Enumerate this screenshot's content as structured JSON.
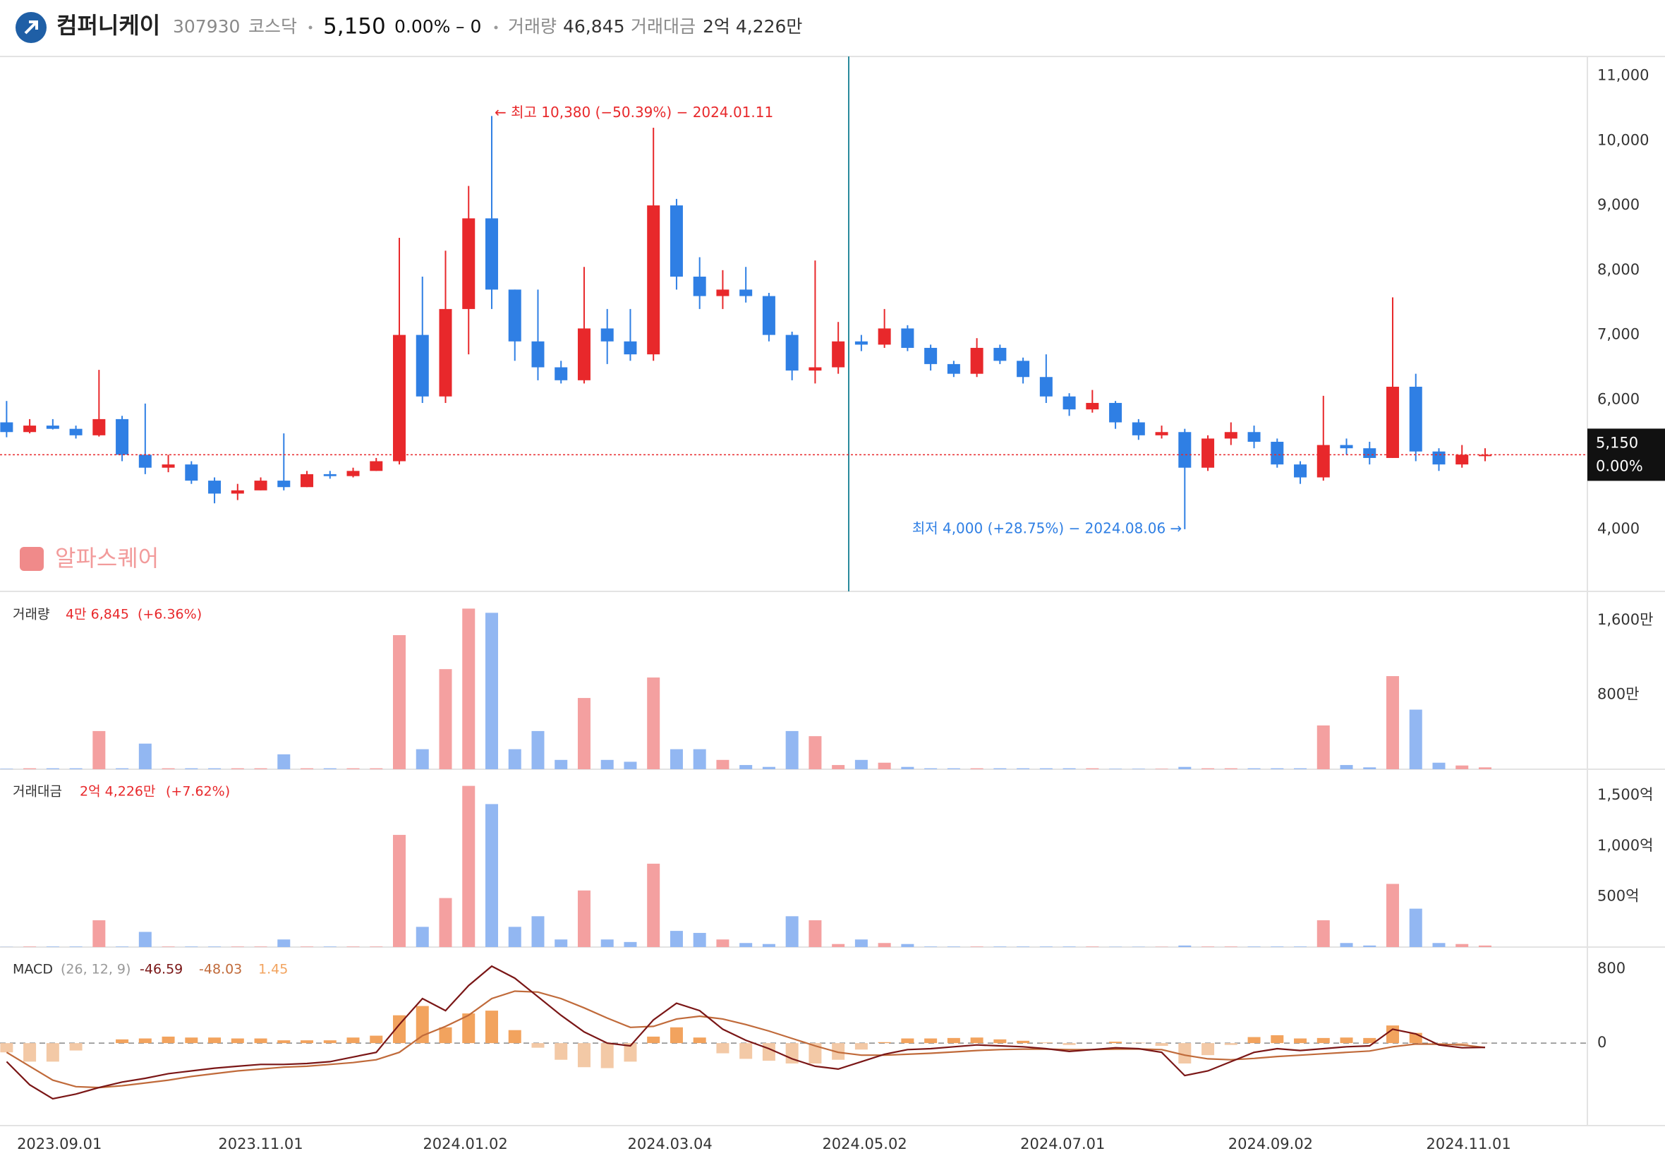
{
  "header": {
    "name": "컴퍼니케이",
    "code": "307930",
    "market": "코스닥",
    "price": "5,150",
    "change_pct": "0.00%",
    "change": "– 0",
    "volume_label": "거래량",
    "volume": "46,845",
    "amount_label": "거래대금",
    "amount": "2억 4,226만"
  },
  "watermark": "알파스퀘어",
  "chart_data": [
    {
      "type": "candlestick",
      "up_color": "#e8282b",
      "down_color": "#2f7fe4",
      "x": [
        "2023.08.14",
        "2023.08.21",
        "2023.08.28",
        "2023.09.04",
        "2023.09.11",
        "2023.09.18",
        "2023.09.25",
        "2023.10.02",
        "2023.10.09",
        "2023.10.16",
        "2023.10.23",
        "2023.10.30",
        "2023.11.06",
        "2023.11.13",
        "2023.11.20",
        "2023.11.27",
        "2023.12.04",
        "2023.12.11",
        "2023.12.18",
        "2023.12.25",
        "2024.01.01",
        "2024.01.08",
        "2024.01.15",
        "2024.01.22",
        "2024.01.29",
        "2024.02.05",
        "2024.02.12",
        "2024.02.19",
        "2024.02.26",
        "2024.03.04",
        "2024.03.11",
        "2024.03.18",
        "2024.03.25",
        "2024.04.01",
        "2024.04.08",
        "2024.04.15",
        "2024.04.22",
        "2024.04.29",
        "2024.05.06",
        "2024.05.13",
        "2024.05.20",
        "2024.05.27",
        "2024.06.03",
        "2024.06.10",
        "2024.06.17",
        "2024.06.24",
        "2024.07.01",
        "2024.07.08",
        "2024.07.15",
        "2024.07.22",
        "2024.07.29",
        "2024.08.05",
        "2024.08.12",
        "2024.08.19",
        "2024.08.26",
        "2024.09.02",
        "2024.09.09",
        "2024.09.16",
        "2024.09.23",
        "2024.09.30",
        "2024.10.07",
        "2024.10.14",
        "2024.10.21",
        "2024.10.28",
        "2024.11.04"
      ],
      "open": [
        5650,
        5500,
        5600,
        5550,
        5450,
        5700,
        5150,
        4950,
        5000,
        4750,
        4550,
        4600,
        4750,
        4650,
        4850,
        4820,
        4900,
        5050,
        7000,
        6050,
        7400,
        8800,
        7700,
        6900,
        6500,
        6300,
        7100,
        6900,
        6700,
        9000,
        7900,
        7600,
        7700,
        7600,
        7000,
        6450,
        6500,
        6900,
        6850,
        7100,
        6800,
        6550,
        6400,
        6800,
        6600,
        6350,
        6050,
        5850,
        5950,
        5650,
        5450,
        5500,
        4950,
        5400,
        5500,
        5350,
        5000,
        4800,
        5300,
        5250,
        5100,
        6200,
        5200,
        5000,
        5150
      ],
      "high": [
        5980,
        5700,
        5700,
        5600,
        6460,
        5750,
        5940,
        5150,
        5050,
        4800,
        4700,
        4800,
        5480,
        4900,
        4900,
        4950,
        5100,
        8500,
        7900,
        8300,
        9300,
        10380,
        7700,
        7700,
        6600,
        8050,
        7400,
        7400,
        10200,
        9100,
        8200,
        8000,
        8050,
        7650,
        7050,
        8150,
        7200,
        7000,
        7400,
        7150,
        6850,
        6600,
        6950,
        6850,
        6650,
        6700,
        6100,
        6150,
        5980,
        5700,
        5600,
        5550,
        5450,
        5650,
        5600,
        5400,
        5050,
        6060,
        5400,
        5350,
        7580,
        6400,
        5250,
        5300,
        5250
      ],
      "low": [
        5420,
        5480,
        5540,
        5400,
        5430,
        5050,
        4850,
        4880,
        4700,
        4400,
        4450,
        4600,
        4600,
        4650,
        4780,
        4800,
        4900,
        5000,
        5950,
        5950,
        6700,
        7400,
        6600,
        6300,
        6250,
        6250,
        6550,
        6600,
        6600,
        7700,
        7400,
        7400,
        7500,
        6900,
        6300,
        6250,
        6400,
        6750,
        6800,
        6750,
        6450,
        6350,
        6350,
        6550,
        6250,
        5950,
        5750,
        5800,
        5550,
        5380,
        5400,
        4000,
        4900,
        5300,
        5250,
        4950,
        4700,
        4750,
        5150,
        5000,
        5100,
        5050,
        4900,
        4950,
        5050
      ],
      "close": [
        5500,
        5600,
        5550,
        5450,
        5700,
        5150,
        4950,
        5000,
        4750,
        4550,
        4600,
        4750,
        4650,
        4850,
        4820,
        4900,
        5050,
        7000,
        6050,
        7400,
        8800,
        7700,
        6900,
        6500,
        6300,
        7100,
        6900,
        6700,
        9000,
        7900,
        7600,
        7700,
        7600,
        7000,
        6450,
        6500,
        6900,
        6850,
        7100,
        6800,
        6550,
        6400,
        6800,
        6600,
        6350,
        6050,
        5850,
        5950,
        5650,
        5450,
        5500,
        4950,
        5400,
        5500,
        5350,
        5000,
        4800,
        5300,
        5250,
        5100,
        6200,
        5200,
        5000,
        5150,
        5150
      ],
      "ylim": [
        3040,
        11300
      ],
      "yticks": [
        {
          "value": 4000,
          "label": "4,000"
        },
        {
          "value": 6000,
          "label": "6,000"
        },
        {
          "value": 7000,
          "label": "7,000"
        },
        {
          "value": 8000,
          "label": "8,000"
        },
        {
          "value": 9000,
          "label": "9,000"
        },
        {
          "value": 10000,
          "label": "10,000"
        },
        {
          "value": 11000,
          "label": "11,000"
        }
      ],
      "annotations": [
        "← 최고 10,380 (−50.39%) − 2024.01.11",
        "최저 4,000 (+28.75%) − 2024.08.06 →"
      ]
    },
    {
      "type": "bar",
      "title": "거래량",
      "value_label": "4만 6,845",
      "change_label": "(+6.36%)",
      "up_color": "#f4a0a0",
      "down_color": "#92b7f2",
      "values": [
        5,
        10,
        10,
        10,
        410,
        10,
        275,
        10,
        10,
        10,
        10,
        10,
        160,
        10,
        10,
        10,
        10,
        1440,
        215,
        1075,
        1725,
        1680,
        215,
        410,
        100,
        765,
        100,
        80,
        985,
        215,
        215,
        100,
        45,
        25,
        410,
        355,
        45,
        100,
        70,
        25,
        10,
        10,
        10,
        10,
        10,
        10,
        10,
        10,
        5,
        5,
        5,
        25,
        10,
        10,
        10,
        10,
        10,
        470,
        45,
        20,
        1000,
        640,
        70,
        40,
        20
      ],
      "ylim": [
        0,
        1910
      ],
      "yticks": [
        {
          "value": 800,
          "label": "800만"
        },
        {
          "value": 1600,
          "label": "1,600만"
        }
      ]
    },
    {
      "type": "bar",
      "title": "거래대금",
      "change_label": "(+7.62%)",
      "up_color": "#f4a0a0",
      "down_color": "#92b7f2",
      "values": [
        2,
        5,
        5,
        5,
        265,
        5,
        150,
        5,
        5,
        5,
        5,
        5,
        75,
        5,
        5,
        5,
        5,
        1110,
        200,
        485,
        1595,
        1415,
        200,
        305,
        75,
        560,
        75,
        50,
        825,
        160,
        140,
        75,
        40,
        30,
        305,
        265,
        30,
        75,
        40,
        30,
        5,
        5,
        5,
        5,
        5,
        5,
        5,
        5,
        3,
        3,
        3,
        15,
        5,
        5,
        5,
        5,
        5,
        265,
        40,
        15,
        625,
        380,
        40,
        30,
        15
      ],
      "ylim": [
        0,
        1760
      ],
      "yticks": [
        {
          "value": 500,
          "label": "500억"
        },
        {
          "value": 1000,
          "label": "1,000억"
        },
        {
          "value": 1500,
          "label": "1,500억"
        }
      ]
    },
    {
      "type": "macd",
      "title": "MACD",
      "params": "(26, 12, 9)",
      "zero_line": true,
      "series": [
        {
          "color": "#7a1616",
          "values": [
            -200,
            -450,
            -600,
            -550,
            -480,
            -420,
            -380,
            -330,
            -300,
            -270,
            -250,
            -230,
            -230,
            -220,
            -200,
            -150,
            -100,
            200,
            480,
            350,
            620,
            830,
            700,
            500,
            300,
            120,
            0,
            -30,
            250,
            430,
            350,
            150,
            30,
            -60,
            -170,
            -250,
            -280,
            -200,
            -120,
            -70,
            -60,
            -40,
            -20,
            -30,
            -40,
            -60,
            -90,
            -70,
            -50,
            -60,
            -100,
            -350,
            -300,
            -200,
            -100,
            -60,
            -80,
            -60,
            -40,
            -30,
            150,
            100,
            -20,
            -50,
            -46.59
          ]
        },
        {
          "color": "#c06a3a",
          "values": [
            -100,
            -250,
            -400,
            -470,
            -480,
            -460,
            -430,
            -400,
            -360,
            -330,
            -300,
            -280,
            -260,
            -250,
            -230,
            -210,
            -180,
            -100,
            80,
            180,
            300,
            480,
            560,
            550,
            480,
            380,
            270,
            170,
            180,
            260,
            290,
            260,
            200,
            130,
            50,
            -30,
            -100,
            -130,
            -130,
            -120,
            -110,
            -95,
            -80,
            -70,
            -65,
            -65,
            -70,
            -70,
            -65,
            -63,
            -70,
            -130,
            -170,
            -180,
            -165,
            -145,
            -130,
            -115,
            -100,
            -85,
            -40,
            -10,
            -12,
            -20,
            -48.03
          ]
        },
        {
          "color": "#f2a35e",
          "negative_color": "#f3c9a6",
          "values": [
            -100,
            -200,
            -200,
            -80,
            0,
            40,
            50,
            70,
            60,
            60,
            50,
            50,
            30,
            30,
            30,
            60,
            80,
            300,
            400,
            170,
            320,
            350,
            140,
            -50,
            -180,
            -260,
            -270,
            -200,
            70,
            170,
            60,
            -110,
            -170,
            -190,
            -220,
            -220,
            -180,
            -70,
            10,
            50,
            50,
            55,
            60,
            40,
            25,
            5,
            -20,
            0,
            15,
            3,
            -30,
            -220,
            -130,
            -20,
            65,
            85,
            50,
            55,
            60,
            55,
            190,
            110,
            -8,
            -30,
            1.45
          ]
        }
      ],
      "ylim": [
        -890,
        1036
      ],
      "yticks": [
        0,
        800
      ],
      "xlim": [
        "2023.08.14",
        "2024.12.07"
      ],
      "xticks": [
        "2023.09.01",
        "2023.11.01",
        "2024.01.02",
        "2024.03.04",
        "2024.05.02",
        "2024.07.01",
        "2024.09.02",
        "2024.11.01"
      ]
    }
  ]
}
